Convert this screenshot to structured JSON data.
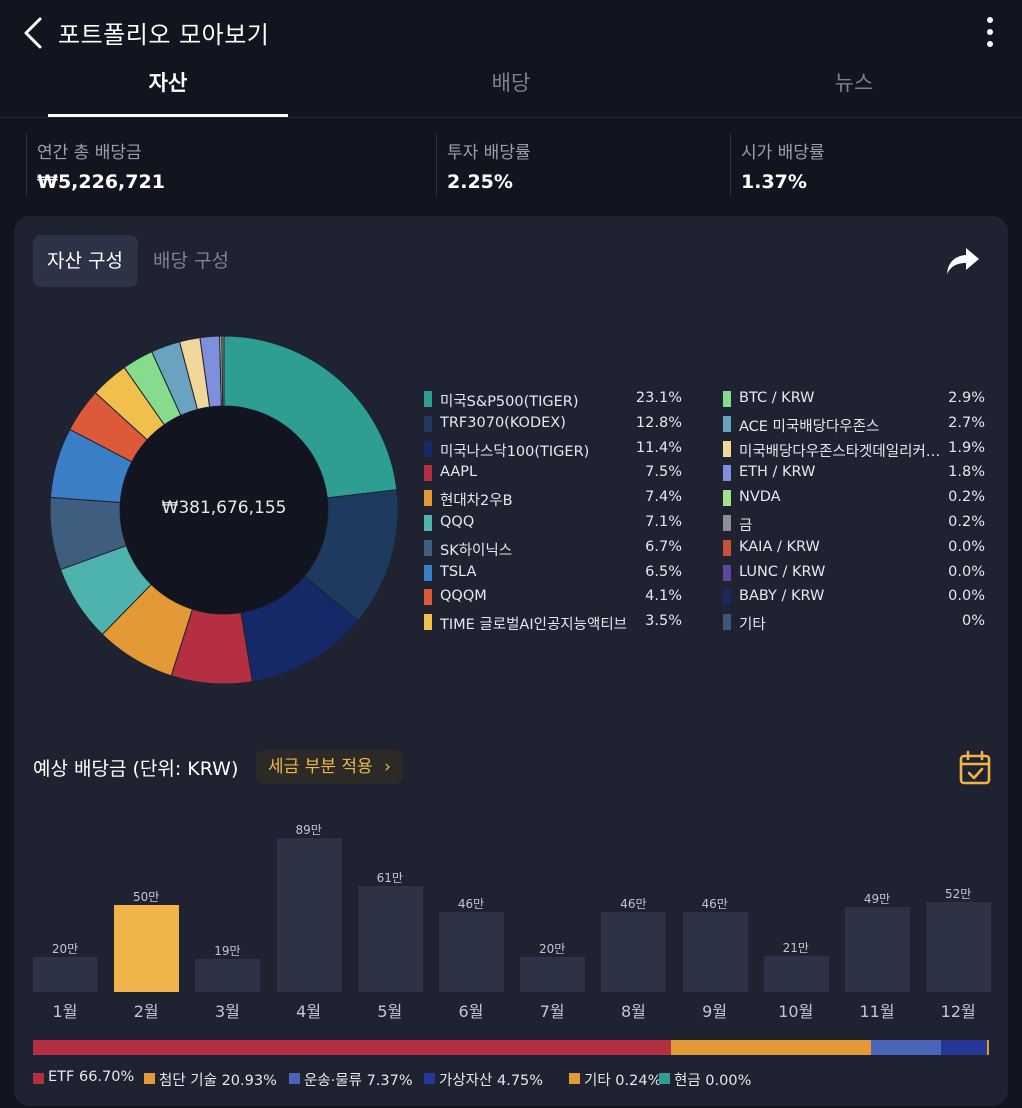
{
  "header": {
    "title": "포트폴리오 모아보기",
    "back_icon": "chevron-left-icon",
    "menu_icon": "more-vertical-icon"
  },
  "tabs": [
    {
      "label": "자산",
      "active": true
    },
    {
      "label": "배당",
      "active": false
    },
    {
      "label": "뉴스",
      "active": false
    }
  ],
  "stats": [
    {
      "label": "연간 총 배당금",
      "value": "₩5,226,721"
    },
    {
      "label": "투자 배당률",
      "value": "2.25%"
    },
    {
      "label": "시가 배당률",
      "value": "1.37%"
    }
  ],
  "segment": {
    "asset_label": "자산 구성",
    "dividend_label": "배당 구성",
    "share_icon": "share-icon"
  },
  "chart_data": [
    {
      "type": "pie",
      "title": "자산 구성",
      "center_label": "₩381,676,155",
      "slices": [
        {
          "label": "미국S&P500(TIGER)",
          "value": 23.1,
          "pct": "23.1%",
          "color": "#2f9e92"
        },
        {
          "label": "TRF3070(KODEX)",
          "value": 12.8,
          "pct": "12.8%",
          "color": "#1f3a5f"
        },
        {
          "label": "미국나스닥100(TIGER)",
          "value": 11.4,
          "pct": "11.4%",
          "color": "#152867"
        },
        {
          "label": "AAPL",
          "value": 7.5,
          "pct": "7.5%",
          "color": "#b52f43"
        },
        {
          "label": "현대차2우B",
          "value": 7.4,
          "pct": "7.4%",
          "color": "#e39a36"
        },
        {
          "label": "QQQ",
          "value": 7.1,
          "pct": "7.1%",
          "color": "#4fb3ad"
        },
        {
          "label": "SK하이닉스",
          "value": 6.7,
          "pct": "6.7%",
          "color": "#3f5e7f"
        },
        {
          "label": "TSLA",
          "value": 6.5,
          "pct": "6.5%",
          "color": "#3a7ec6"
        },
        {
          "label": "QQQM",
          "value": 4.1,
          "pct": "4.1%",
          "color": "#dc5a3a"
        },
        {
          "label": "TIME 글로벌AI인공지능액티브",
          "value": 3.5,
          "pct": "3.5%",
          "color": "#f0c04c"
        },
        {
          "label": "BTC / KRW",
          "value": 2.9,
          "pct": "2.9%",
          "color": "#86dc8c"
        },
        {
          "label": "ACE 미국배당다우존스",
          "value": 2.7,
          "pct": "2.7%",
          "color": "#6aa3c0"
        },
        {
          "label": "미국배당다우존스타겟데일리커…",
          "value": 1.9,
          "pct": "1.9%",
          "color": "#f2d79a"
        },
        {
          "label": "ETH / KRW",
          "value": 1.8,
          "pct": "1.8%",
          "color": "#7f8fdc"
        },
        {
          "label": "NVDA",
          "value": 0.2,
          "pct": "0.2%",
          "color": "#a5e08a"
        },
        {
          "label": "금",
          "value": 0.2,
          "pct": "0.2%",
          "color": "#8b8e96"
        },
        {
          "label": "KAIA / KRW",
          "value": 0.0,
          "pct": "0.0%",
          "color": "#c9503a"
        },
        {
          "label": "LUNC / KRW",
          "value": 0.0,
          "pct": "0.0%",
          "color": "#5b4a9c"
        },
        {
          "label": "BABY / KRW",
          "value": 0.0,
          "pct": "0.0%",
          "color": "#1a2a5a"
        },
        {
          "label": "기타",
          "value": 0.0,
          "pct": "0%",
          "color": "#3b5878"
        }
      ]
    },
    {
      "type": "bar",
      "title": "예상 배당금 (단위: KRW)",
      "categories": [
        "1월",
        "2월",
        "3월",
        "4월",
        "5월",
        "6월",
        "7월",
        "8월",
        "9월",
        "10월",
        "11월",
        "12월"
      ],
      "values": [
        20,
        50,
        19,
        89,
        61,
        46,
        20,
        46,
        46,
        21,
        49,
        52
      ],
      "value_labels": [
        "20만",
        "50만",
        "19만",
        "89만",
        "61만",
        "46만",
        "20만",
        "46만",
        "46만",
        "21만",
        "49만",
        "52만"
      ],
      "unit": "만",
      "highlighted_index": 1,
      "ylim": [
        0,
        89
      ]
    }
  ],
  "dividend_section": {
    "title": "예상 배당금 (단위: KRW)",
    "tax_button_label": "세금 부분 적용",
    "tax_button_icon": "chevron-right-icon",
    "calendar_icon": "calendar-check-icon",
    "bar_color": "#2d3247",
    "highlight_color": "#f0b44b"
  },
  "category_breakdown": [
    {
      "label": "ETF",
      "pct_text": "66.70%",
      "value": 66.7,
      "color": "#b52f43"
    },
    {
      "label": "첨단 기술",
      "pct_text": "20.93%",
      "value": 20.93,
      "color": "#e39a36"
    },
    {
      "label": "운송·물류",
      "pct_text": "7.37%",
      "value": 7.37,
      "color": "#4a64b8"
    },
    {
      "label": "가상자산",
      "pct_text": "4.75%",
      "value": 4.75,
      "color": "#243696"
    },
    {
      "label": "기타",
      "pct_text": "0.24%",
      "value": 0.24,
      "color": "#e39a36"
    },
    {
      "label": "현금",
      "pct_text": "0.00%",
      "value": 0.0,
      "color": "#2f9e92"
    }
  ]
}
